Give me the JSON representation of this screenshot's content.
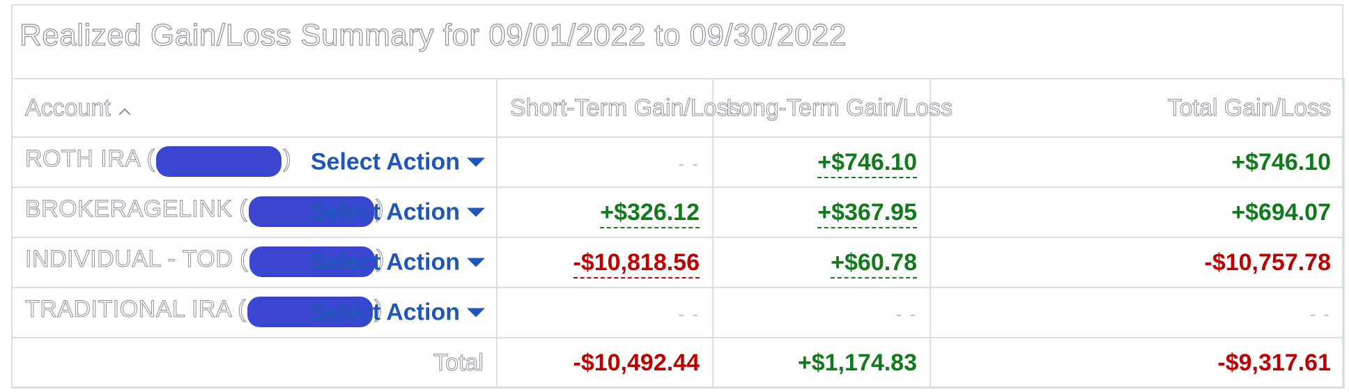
{
  "title": "Realized Gain/Loss Summary for 09/01/2022 to 09/30/2022",
  "columns": {
    "account": "Account",
    "short_term": "Short-Term Gain/Loss",
    "long_term": "Long-Term Gain/Loss",
    "total": "Total Gain/Loss"
  },
  "icons": {
    "sort": "chevron-up-icon",
    "dropdown": "caret-down-icon"
  },
  "colors": {
    "positive": "#117a1c",
    "negative": "#c00000",
    "link": "#1f56b8",
    "redaction": "#3a45d2"
  },
  "rows": [
    {
      "name": "ROTH IRA (",
      "close": ")",
      "action": "Select Action",
      "short_term": "- -",
      "long_term": "+$746.10",
      "total": "+$746.10"
    },
    {
      "name": "BROKERAGELINK (",
      "close": ")",
      "action": "Select Action",
      "short_term": "+$326.12",
      "long_term": "+$367.95",
      "total": "+$694.07"
    },
    {
      "name": "INDIVIDUAL - TOD (",
      "close": ")",
      "action": "Select Action",
      "short_term": "-$10,818.56",
      "long_term": "+$60.78",
      "total": "-$10,757.78"
    },
    {
      "name": "TRADITIONAL IRA (",
      "close": ")",
      "action": "Select Action",
      "short_term": "- -",
      "long_term": "- -",
      "total": "- -"
    }
  ],
  "totals": {
    "label": "Total",
    "short_term": "-$10,492.44",
    "long_term": "+$1,174.83",
    "total": "-$9,317.61"
  }
}
